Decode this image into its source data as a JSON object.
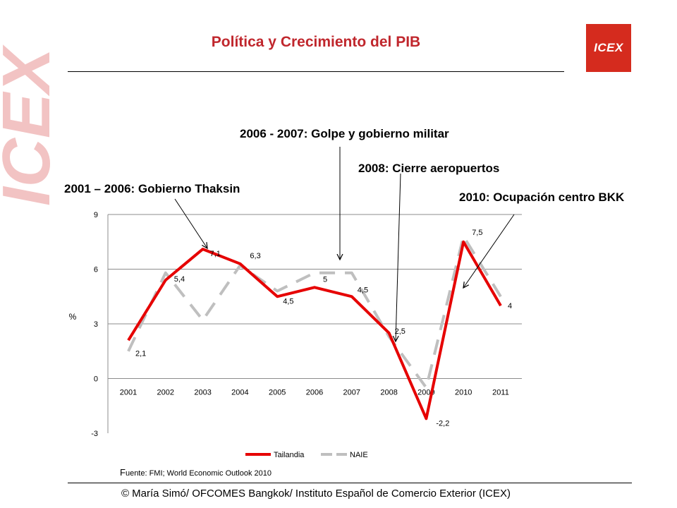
{
  "slide": {
    "title": "Política y Crecimiento del PIB",
    "logo_text": "ICEX",
    "watermark_text": "ICEX",
    "footer": "© María Simó/ OFCOMES Bangkok/ Instituto Español de Comercio Exterior (ICEX)",
    "source_initial": "F",
    "source_rest": "uente: FMI; World Economic Outlook 2010",
    "colors": {
      "title": "#c0272d",
      "logo": "#d52b1e",
      "watermark": "#f2c3c3"
    }
  },
  "annotations": [
    {
      "text": "2006 - 2007: Golpe y gobierno militar",
      "target_year": "2006.7"
    },
    {
      "text": "2008: Cierre aeropuertos",
      "target_year": "2008"
    },
    {
      "text": "2001 – 2006: Gobierno Thaksin",
      "target_year": "2003"
    },
    {
      "text": "2010: Ocupación centro BKK",
      "target_year": "2010"
    }
  ],
  "chart_data": {
    "type": "line",
    "categories": [
      "2001",
      "2002",
      "2003",
      "2004",
      "2005",
      "2006",
      "2007",
      "2008",
      "2009",
      "2010",
      "2011"
    ],
    "ylabel": "%",
    "ylim": [
      -3,
      9
    ],
    "yticks": [
      -3,
      0,
      3,
      6,
      9
    ],
    "grid": true,
    "legend_position": "bottom",
    "series": [
      {
        "name": "Tailandia",
        "color": "#e60000",
        "style": "solid",
        "values": [
          2.1,
          5.4,
          7.1,
          6.3,
          4.5,
          5,
          4.5,
          2.5,
          -2.2,
          7.5,
          4
        ],
        "labels": [
          "2,1",
          "5,4",
          "7,1",
          "6,3",
          "4,5",
          "5",
          "4,5",
          "2,5",
          "-2,2",
          "7,5",
          "4"
        ]
      },
      {
        "name": "NAIE",
        "color": "#bfbfbf",
        "style": "dashed",
        "values": [
          1.5,
          5.8,
          3.2,
          6.2,
          4.8,
          5.8,
          5.8,
          2.3,
          -0.5,
          7.8,
          4.5
        ]
      }
    ]
  }
}
